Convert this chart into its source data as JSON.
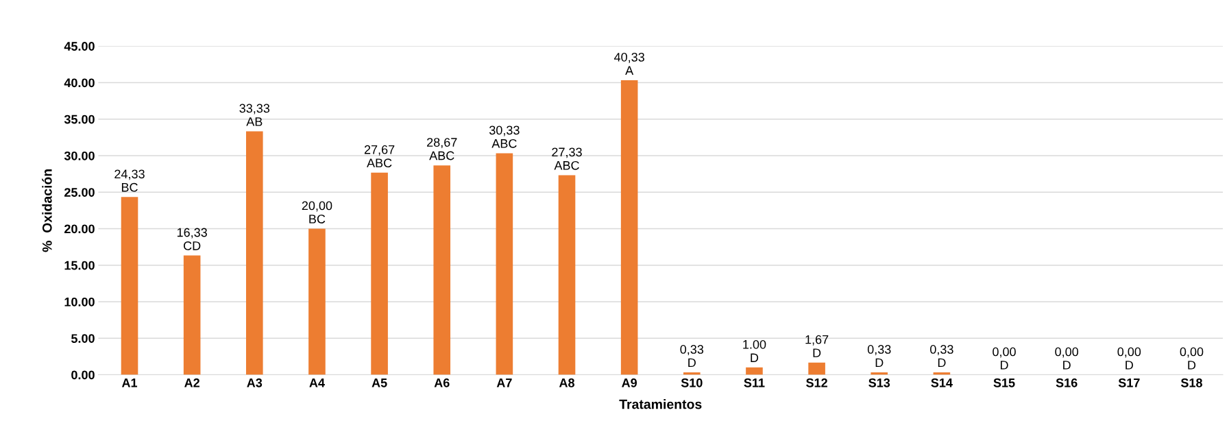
{
  "chart_data": {
    "type": "bar",
    "xlabel": "Tratamientos",
    "ylabel": "%  Oxidación",
    "categories": [
      "A1",
      "A2",
      "A3",
      "A4",
      "A5",
      "A6",
      "A7",
      "A8",
      "A9",
      "S10",
      "S11",
      "S12",
      "S13",
      "S14",
      "S15",
      "S16",
      "S17",
      "S18"
    ],
    "values": [
      24.33,
      16.33,
      33.33,
      20.0,
      27.67,
      28.67,
      30.33,
      27.33,
      40.33,
      0.33,
      1.0,
      1.67,
      0.33,
      0.33,
      0,
      0,
      0,
      0
    ],
    "value_labels": [
      "24,33\nBC",
      "16,33\nCD",
      "33,33\nAB",
      "20,00\nBC",
      "27,67\nABC",
      "28,67\nABC",
      "30,33\nABC",
      "27,33\nABC",
      "40,33\nA",
      "0,33\nD",
      "1.00\nD",
      "1,67\nD",
      "0,33\nD",
      "0,33\nD",
      "0,00\nD",
      "0,00\nD",
      "0,00\nD",
      "0,00\nD"
    ],
    "color": "#ed7d31",
    "ylim": [
      0,
      45
    ],
    "yticks": [
      {
        "value": 0,
        "label": "0.00"
      },
      {
        "value": 5,
        "label": "5.00"
      },
      {
        "value": 10,
        "label": "10.00"
      },
      {
        "value": 15,
        "label": "15.00"
      },
      {
        "value": 20,
        "label": "20.00"
      },
      {
        "value": 25,
        "label": "25.00"
      },
      {
        "value": 30,
        "label": "30.00"
      },
      {
        "value": 35,
        "label": "35.00"
      },
      {
        "value": 40,
        "label": "40.00"
      },
      {
        "value": 45,
        "label": "45.00"
      }
    ],
    "grid": "y",
    "legend": false
  }
}
